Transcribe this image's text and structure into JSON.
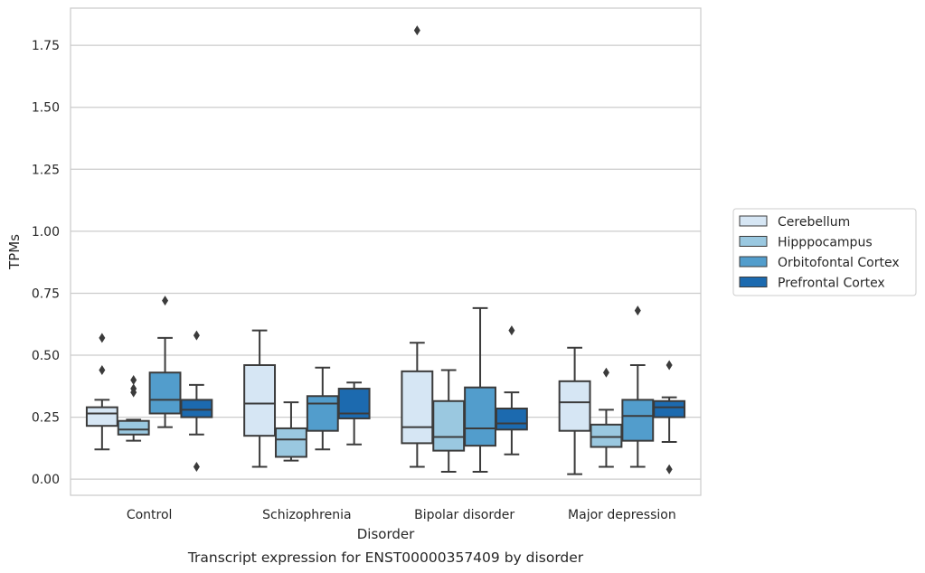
{
  "caption": "Transcript expression for ENST00000357409 by disorder",
  "chart_data": {
    "type": "box",
    "title": "",
    "xlabel": "Disorder",
    "ylabel": "TPMs",
    "ylim": [
      -0.065,
      1.9
    ],
    "yticks": [
      0.0,
      0.25,
      0.5,
      0.75,
      1.0,
      1.25,
      1.5,
      1.75
    ],
    "ytick_labels": [
      "0.00",
      "0.25",
      "0.50",
      "0.75",
      "1.00",
      "1.25",
      "1.50",
      "1.75"
    ],
    "grid": "horizontal",
    "legend_position": "right",
    "categories": [
      "Control",
      "Schizophrenia",
      "Bipolar disorder",
      "Major depression"
    ],
    "series": [
      {
        "name": "Cerebellum",
        "color": "#d6e6f4",
        "boxes": [
          {
            "whislo": 0.12,
            "q1": 0.215,
            "med": 0.265,
            "q3": 0.29,
            "whishi": 0.32,
            "fliers": [
              0.57,
              0.44
            ]
          },
          {
            "whislo": 0.05,
            "q1": 0.175,
            "med": 0.305,
            "q3": 0.46,
            "whishi": 0.6,
            "fliers": []
          },
          {
            "whislo": 0.05,
            "q1": 0.145,
            "med": 0.21,
            "q3": 0.435,
            "whishi": 0.55,
            "fliers": [
              1.81
            ]
          },
          {
            "whislo": 0.02,
            "q1": 0.195,
            "med": 0.31,
            "q3": 0.395,
            "whishi": 0.53,
            "fliers": []
          }
        ]
      },
      {
        "name": "Hipppocampus",
        "color": "#9ac8e0",
        "boxes": [
          {
            "whislo": 0.155,
            "q1": 0.18,
            "med": 0.2,
            "q3": 0.235,
            "whishi": 0.24,
            "fliers": [
              0.4,
              0.365,
              0.35
            ]
          },
          {
            "whislo": 0.075,
            "q1": 0.09,
            "med": 0.16,
            "q3": 0.205,
            "whishi": 0.31,
            "fliers": []
          },
          {
            "whislo": 0.03,
            "q1": 0.115,
            "med": 0.17,
            "q3": 0.315,
            "whishi": 0.44,
            "fliers": []
          },
          {
            "whislo": 0.05,
            "q1": 0.13,
            "med": 0.17,
            "q3": 0.22,
            "whishi": 0.28,
            "fliers": [
              0.43
            ]
          }
        ]
      },
      {
        "name": "Orbitofontal Cortex",
        "color": "#529dcc",
        "boxes": [
          {
            "whislo": 0.21,
            "q1": 0.265,
            "med": 0.32,
            "q3": 0.43,
            "whishi": 0.57,
            "fliers": [
              0.72
            ]
          },
          {
            "whislo": 0.12,
            "q1": 0.195,
            "med": 0.305,
            "q3": 0.335,
            "whishi": 0.45,
            "fliers": []
          },
          {
            "whislo": 0.03,
            "q1": 0.135,
            "med": 0.205,
            "q3": 0.37,
            "whishi": 0.69,
            "fliers": []
          },
          {
            "whislo": 0.05,
            "q1": 0.155,
            "med": 0.255,
            "q3": 0.32,
            "whishi": 0.46,
            "fliers": [
              0.68
            ]
          }
        ]
      },
      {
        "name": "Prefrontal Cortex",
        "color": "#1c6aaf",
        "boxes": [
          {
            "whislo": 0.18,
            "q1": 0.25,
            "med": 0.28,
            "q3": 0.32,
            "whishi": 0.38,
            "fliers": [
              0.58,
              0.05
            ]
          },
          {
            "whislo": 0.14,
            "q1": 0.245,
            "med": 0.265,
            "q3": 0.365,
            "whishi": 0.39,
            "fliers": []
          },
          {
            "whislo": 0.1,
            "q1": 0.2,
            "med": 0.225,
            "q3": 0.285,
            "whishi": 0.35,
            "fliers": [
              0.6
            ]
          },
          {
            "whislo": 0.15,
            "q1": 0.25,
            "med": 0.29,
            "q3": 0.315,
            "whishi": 0.33,
            "fliers": [
              0.46,
              0.04
            ]
          }
        ]
      }
    ]
  }
}
